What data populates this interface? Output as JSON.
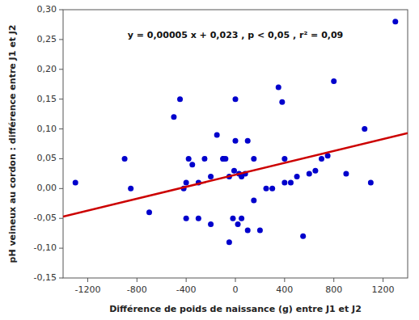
{
  "chart_data": {
    "type": "scatter",
    "xlabel": "Différence de poids de naissance (g) entre J1 et J2",
    "ylabel": "pH veineux au cordon : différence entre J1 et J2",
    "annotation": "y = 0,00005 x + 0,023 , p < 0,05 , r² = 0,09",
    "xlim": [
      -1400,
      1400
    ],
    "ylim": [
      -0.15,
      0.3
    ],
    "xticks": [
      -1200,
      -800,
      -400,
      0,
      400,
      800,
      1200
    ],
    "yticks": [
      {
        "value": -0.15,
        "label": "-0,15"
      },
      {
        "value": -0.1,
        "label": "-0,10"
      },
      {
        "value": -0.05,
        "label": "-0,05"
      },
      {
        "value": 0.0,
        "label": "0,00"
      },
      {
        "value": 0.05,
        "label": "0,05"
      },
      {
        "value": 0.1,
        "label": "0,10"
      },
      {
        "value": 0.15,
        "label": "0,15"
      },
      {
        "value": 0.2,
        "label": "0,20"
      },
      {
        "value": 0.25,
        "label": "0,25"
      },
      {
        "value": 0.3,
        "label": "0,30"
      }
    ],
    "grid": false,
    "series": [
      {
        "type": "scatter",
        "color": "#0000CC",
        "x": [
          -1300,
          -900,
          -850,
          -700,
          -500,
          -450,
          -420,
          -400,
          -400,
          -380,
          -350,
          -300,
          -300,
          -250,
          -200,
          -200,
          -150,
          -100,
          -100,
          -80,
          -50,
          -50,
          -20,
          -10,
          0,
          0,
          20,
          30,
          50,
          50,
          80,
          100,
          100,
          150,
          150,
          200,
          250,
          300,
          350,
          380,
          400,
          400,
          450,
          500,
          550,
          600,
          650,
          700,
          750,
          800,
          900,
          1050,
          1100,
          1300
        ],
        "values": [
          0.01,
          0.05,
          0.0,
          -0.04,
          0.12,
          0.15,
          0.0,
          -0.05,
          0.01,
          0.05,
          0.04,
          -0.05,
          0.01,
          0.05,
          0.02,
          -0.06,
          0.09,
          0.05,
          0.05,
          0.05,
          0.02,
          -0.09,
          -0.05,
          0.03,
          0.15,
          0.08,
          -0.06,
          0.025,
          0.02,
          -0.05,
          0.025,
          0.08,
          -0.07,
          -0.02,
          0.05,
          -0.07,
          0.0,
          0.0,
          0.17,
          0.145,
          0.05,
          0.01,
          0.01,
          0.02,
          -0.08,
          0.025,
          0.03,
          0.05,
          0.055,
          0.18,
          0.025,
          0.1,
          0.01,
          0.28
        ]
      },
      {
        "type": "line",
        "color": "#CC0000",
        "x": [
          -1400,
          1400
        ],
        "values": [
          -0.047,
          0.093
        ]
      }
    ]
  }
}
